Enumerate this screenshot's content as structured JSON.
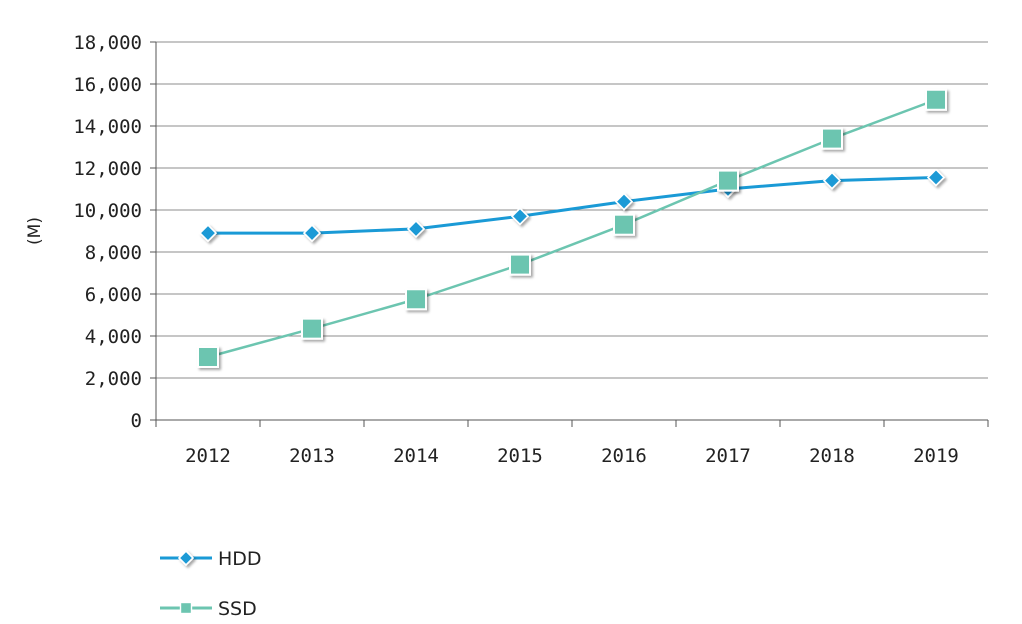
{
  "chart_data": {
    "type": "line",
    "title": "",
    "xlabel": "",
    "ylabel": "(M)",
    "categories": [
      "2012",
      "2013",
      "2014",
      "2015",
      "2016",
      "2017",
      "2018",
      "2019"
    ],
    "ylim": [
      0,
      18000
    ],
    "yticks": [
      0,
      2000,
      4000,
      6000,
      8000,
      10000,
      12000,
      14000,
      16000,
      18000
    ],
    "ytick_labels": [
      "0",
      "2,000",
      "4,000",
      "6,000",
      "8,000",
      "10,000",
      "12,000",
      "14,000",
      "16,000",
      "18,000"
    ],
    "grid": true,
    "legend_position": "bottom-left",
    "series": [
      {
        "name": "HDD",
        "marker": "diamond",
        "color": "#1a9ad6",
        "values": [
          8900,
          8900,
          9100,
          9700,
          10400,
          11000,
          11400,
          11550
        ]
      },
      {
        "name": "SSD",
        "marker": "square",
        "color": "#6cc5b0",
        "values": [
          3000,
          4350,
          5750,
          7400,
          9300,
          11400,
          13400,
          15250
        ]
      }
    ]
  }
}
